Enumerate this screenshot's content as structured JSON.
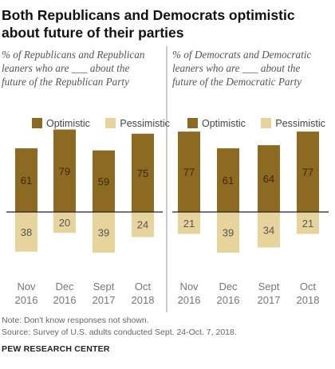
{
  "title": "Both Republicans and Democrats optimistic about future of their parties",
  "notes": {
    "note": "Note: Don't know responses not shown.",
    "source": "Source: Survey of U.S. adults conducted Sept. 24-Oct. 7, 2018.",
    "org": "PEW RESEARCH CENTER"
  },
  "colors": {
    "optimistic": "#8c6a22",
    "pessimistic": "#e7d39c",
    "axis": "#222222",
    "divider": "#999999",
    "optimistic_label": "#3a2a08",
    "pessimistic_label": "#555555",
    "tick": "#777777"
  },
  "chart_data": [
    {
      "type": "bar",
      "title": "% of Republicans and Republican leaners who are ___ about the future of the Republican Party",
      "legend": [
        "Optimistic",
        "Pessimistic"
      ],
      "legend_position": "top",
      "categories": [
        {
          "line1": "Nov",
          "line2": "2016"
        },
        {
          "line1": "Dec",
          "line2": "2016"
        },
        {
          "line1": "Sept",
          "line2": "2017"
        },
        {
          "line1": "Oct",
          "line2": "2018"
        }
      ],
      "series": [
        {
          "name": "Optimistic",
          "values": [
            61,
            79,
            59,
            75
          ]
        },
        {
          "name": "Pessimistic",
          "values": [
            38,
            20,
            39,
            24
          ]
        }
      ]
    },
    {
      "type": "bar",
      "title": "% of Democrats and Democratic leaners who are ___ about the future of the Democratic Party",
      "legend": [
        "Optimistic",
        "Pessimistic"
      ],
      "legend_position": "top",
      "categories": [
        {
          "line1": "Nov",
          "line2": "2016"
        },
        {
          "line1": "Dec",
          "line2": "2016"
        },
        {
          "line1": "Sept",
          "line2": "2017"
        },
        {
          "line1": "Oct",
          "line2": "2018"
        }
      ],
      "series": [
        {
          "name": "Optimistic",
          "values": [
            77,
            61,
            64,
            77
          ]
        },
        {
          "name": "Pessimistic",
          "values": [
            21,
            39,
            34,
            21
          ]
        }
      ]
    }
  ]
}
